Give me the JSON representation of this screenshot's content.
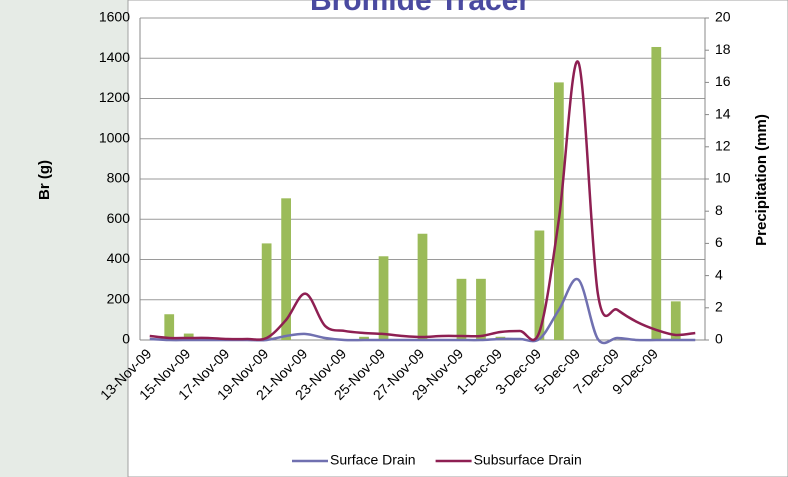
{
  "chart_data": {
    "type": "combo",
    "title": "Bromide Tracer",
    "y_label": "Br (g)",
    "y2_label": "Precipitation (mm)",
    "categories": [
      "13-Nov-09",
      null,
      "15-Nov-09",
      null,
      "17-Nov-09",
      null,
      "19-Nov-09",
      null,
      "21-Nov-09",
      null,
      "23-Nov-09",
      null,
      "25-Nov-09",
      null,
      "27-Nov-09",
      null,
      "29-Nov-09",
      null,
      "1-Dec-09",
      null,
      "3-Dec-09",
      null,
      "5-Dec-09",
      null,
      "7-Dec-09",
      null,
      "9-Dec-09",
      null,
      null
    ],
    "series": [
      {
        "name": "Precipitation",
        "kind": "bar",
        "axis": "y2",
        "color": "#9bbb59",
        "values": [
          0,
          1.6,
          0.4,
          0,
          0,
          0,
          6.0,
          8.8,
          0,
          0,
          0,
          0.2,
          5.2,
          0,
          6.6,
          0,
          3.8,
          3.8,
          0.2,
          0,
          6.8,
          16.0,
          0,
          0,
          0,
          0,
          18.2,
          2.4,
          0
        ]
      },
      {
        "name": "Surface Drain",
        "kind": "line",
        "color": "#7070b0",
        "values": [
          5,
          0,
          0,
          0,
          0,
          0,
          0,
          20,
          30,
          10,
          0,
          0,
          0,
          0,
          0,
          0,
          0,
          0,
          5,
          5,
          5,
          150,
          300,
          5,
          10,
          0,
          0,
          0,
          0
        ]
      },
      {
        "name": "Subsurface Drain",
        "kind": "line",
        "color": "#8e1f52",
        "values": [
          20,
          10,
          10,
          10,
          5,
          5,
          10,
          100,
          230,
          70,
          45,
          35,
          30,
          20,
          15,
          20,
          20,
          20,
          40,
          45,
          40,
          600,
          1380,
          230,
          150,
          90,
          50,
          25,
          35
        ]
      }
    ],
    "ylim": [
      0,
      1600
    ],
    "yticks": [
      0,
      200,
      400,
      600,
      800,
      1000,
      1200,
      1400,
      1600
    ],
    "y2lim": [
      0,
      20
    ],
    "y2ticks": [
      0,
      2,
      4,
      6,
      8,
      10,
      12,
      14,
      16,
      18,
      20
    ],
    "grid": true
  }
}
